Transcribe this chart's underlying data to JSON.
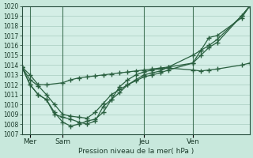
{
  "background_color": "#c8e8dc",
  "plot_bg_color": "#d4eee6",
  "grid_color": "#a8ccc0",
  "line_color": "#2a6040",
  "xlabel": "Pression niveau de la mer( hPa )",
  "ylim": [
    1007,
    1020
  ],
  "xlim": [
    0,
    28
  ],
  "xtick_labels": [
    "Mer",
    "Sam",
    "Jeu",
    "Ven"
  ],
  "xtick_positions": [
    1,
    5,
    15,
    21
  ],
  "vline_positions": [
    1,
    5,
    15,
    21
  ],
  "series": [
    {
      "x": [
        0,
        1,
        2,
        3,
        5,
        6,
        7,
        8,
        9,
        10,
        11,
        12,
        13,
        14,
        15,
        16,
        17,
        18,
        21,
        22,
        23,
        24,
        27,
        28
      ],
      "y": [
        1013.8,
        1013.0,
        1012.0,
        1012.0,
        1012.2,
        1012.5,
        1012.7,
        1012.8,
        1012.9,
        1013.0,
        1013.1,
        1013.2,
        1013.3,
        1013.4,
        1013.5,
        1013.6,
        1013.7,
        1013.8,
        1015.0,
        1015.5,
        1016.0,
        1016.6,
        1019.0,
        1020.0
      ]
    },
    {
      "x": [
        0,
        1,
        2,
        3,
        4,
        5,
        6,
        7,
        8,
        9,
        10,
        11,
        12,
        13,
        14,
        15,
        16,
        17,
        18,
        21,
        22,
        23,
        24,
        27,
        28
      ],
      "y": [
        1013.8,
        1012.5,
        1011.9,
        1011.0,
        1010.0,
        1009.0,
        1008.8,
        1008.7,
        1008.6,
        1009.2,
        1010.1,
        1011.0,
        1011.5,
        1012.0,
        1012.4,
        1012.8,
        1013.0,
        1013.2,
        1013.5,
        1014.2,
        1015.0,
        1015.8,
        1016.3,
        1019.0,
        1020.0
      ]
    },
    {
      "x": [
        0,
        1,
        2,
        3,
        4,
        5,
        6,
        7,
        8,
        9,
        10,
        11,
        12,
        13,
        14,
        15,
        16,
        17,
        18,
        21,
        22,
        23,
        24,
        27,
        28
      ],
      "y": [
        1013.8,
        1012.0,
        1011.0,
        1010.5,
        1009.0,
        1008.7,
        1008.5,
        1008.2,
        1008.0,
        1008.3,
        1009.8,
        1010.5,
        1011.2,
        1012.0,
        1012.5,
        1013.0,
        1013.2,
        1013.4,
        1013.8,
        1014.2,
        1015.5,
        1016.8,
        1017.0,
        1018.8,
        1020.0
      ]
    },
    {
      "x": [
        0,
        1,
        2,
        3,
        4,
        5,
        6,
        7,
        8,
        9,
        10,
        11,
        12,
        13,
        14,
        15,
        16,
        17,
        18,
        21,
        22,
        23,
        24,
        27,
        28
      ],
      "y": [
        1013.8,
        1012.0,
        1011.0,
        1010.5,
        1009.2,
        1008.2,
        1007.8,
        1008.0,
        1008.3,
        1008.5,
        1009.2,
        1010.5,
        1011.8,
        1012.5,
        1013.0,
        1013.3,
        1013.5,
        1013.6,
        1013.7,
        1013.5,
        1013.4,
        1013.5,
        1013.6,
        1014.0,
        1014.2
      ]
    }
  ]
}
